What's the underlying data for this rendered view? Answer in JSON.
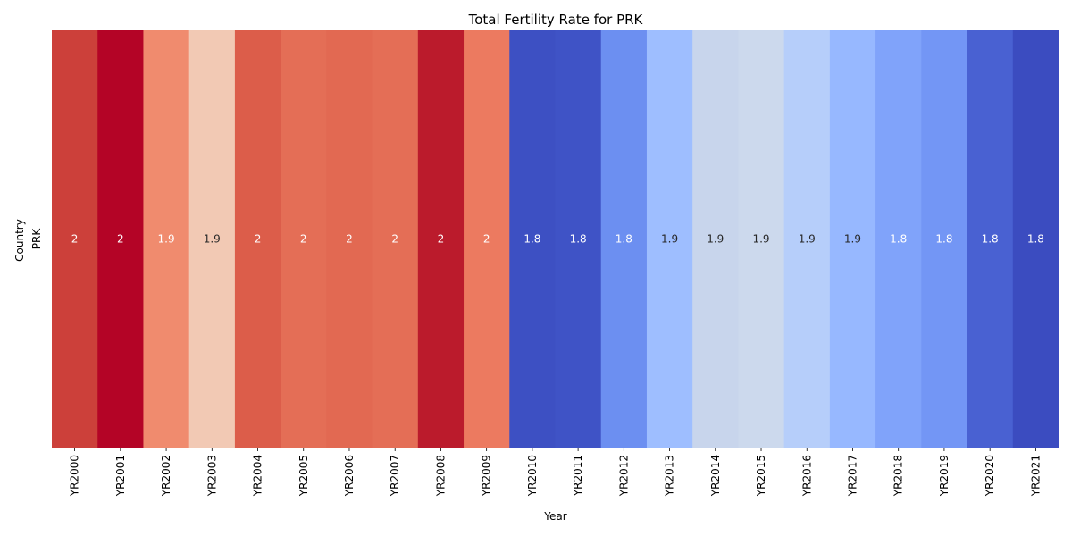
{
  "chart_data": {
    "type": "heatmap",
    "title": "Total Fertility Rate for PRK",
    "xlabel": "Year",
    "ylabel": "Country",
    "rows": [
      "PRK"
    ],
    "categories": [
      "YR2000",
      "YR2001",
      "YR2002",
      "YR2003",
      "YR2004",
      "YR2005",
      "YR2006",
      "YR2007",
      "YR2008",
      "YR2009",
      "YR2010",
      "YR2011",
      "YR2012",
      "YR2013",
      "YR2014",
      "YR2015",
      "YR2016",
      "YR2017",
      "YR2018",
      "YR2019",
      "YR2020",
      "YR2021"
    ],
    "values": [
      [
        2.0,
        2.02,
        1.95,
        1.91,
        1.99,
        1.98,
        1.98,
        1.98,
        2.01,
        1.97,
        1.8,
        1.8,
        1.83,
        1.86,
        1.88,
        1.88,
        1.87,
        1.86,
        1.84,
        1.83,
        1.81,
        1.8
      ]
    ],
    "value_labels": [
      [
        "2",
        "2",
        "1.9",
        "1.9",
        "2",
        "2",
        "2",
        "2",
        "2",
        "2",
        "1.8",
        "1.8",
        "1.8",
        "1.9",
        "1.9",
        "1.9",
        "1.9",
        "1.9",
        "1.8",
        "1.8",
        "1.8",
        "1.8"
      ]
    ],
    "cell_colors": [
      [
        "#cc403a",
        "#b40426",
        "#f08b6e",
        "#f2c9b4",
        "#dc5d4a",
        "#e46e56",
        "#e26952",
        "#e46e56",
        "#bb1b2c",
        "#ec7a60",
        "#3d50c3",
        "#3f53c6",
        "#6c8ff1",
        "#9ebeff",
        "#c8d5ec",
        "#ccd9ed",
        "#b6cefa",
        "#97b8ff",
        "#80a3fa",
        "#7396f5",
        "#4961d2",
        "#3b4cc0"
      ]
    ],
    "label_colors": [
      [
        "#ffffff",
        "#ffffff",
        "#ffffff",
        "#262626",
        "#ffffff",
        "#ffffff",
        "#ffffff",
        "#ffffff",
        "#ffffff",
        "#ffffff",
        "#ffffff",
        "#ffffff",
        "#ffffff",
        "#262626",
        "#262626",
        "#262626",
        "#262626",
        "#262626",
        "#ffffff",
        "#ffffff",
        "#ffffff",
        "#ffffff"
      ]
    ],
    "colormap": "coolwarm",
    "grid": false,
    "legend": "none"
  }
}
